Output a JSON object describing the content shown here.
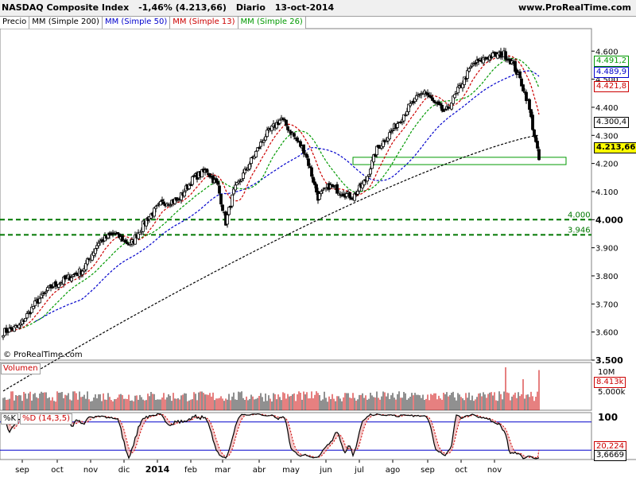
{
  "header": {
    "instrument": "NASDAQ Composite Index",
    "change": "-1,46% (4.213,66)",
    "period": "Diario",
    "date": "13-oct-2014",
    "site": "www.ProRealTime.com"
  },
  "legend": [
    {
      "label": "Precio",
      "color": "#000000"
    },
    {
      "label": "MM (Simple 200)",
      "color": "#000000"
    },
    {
      "label": "MM (Simple 50)",
      "color": "#0000cc"
    },
    {
      "label": "MM (Simple 13)",
      "color": "#cc0000"
    },
    {
      "label": "MM (Simple 26)",
      "color": "#009900"
    }
  ],
  "value_tags": [
    {
      "text": "4.491,2",
      "color": "#009900"
    },
    {
      "text": "4.489,9",
      "color": "#0000cc"
    },
    {
      "text": "4.421,8",
      "color": "#cc0000"
    },
    {
      "text": "4.300,4",
      "color": "#000000"
    },
    {
      "text": "4.213,66",
      "color": "#000000"
    }
  ],
  "copyright": "© ProRealTime.com",
  "volume_label": "Volumen",
  "volume_tags": {
    "max": "10M",
    "last": "8.413k",
    "mid": "5.000k"
  },
  "stoch_label_k": "%K",
  "stoch_label_d": "%D (14,3,5)",
  "stoch_tags": {
    "top": "100",
    "d": "20,224",
    "k": "3,6669"
  },
  "chart_data": {
    "type": "candlestick",
    "title": "NASDAQ Composite Index",
    "ylim": [
      3500,
      4680
    ],
    "y_ticks": [
      3500,
      3600,
      3700,
      3800,
      3900,
      4000,
      4100,
      4200,
      4300,
      4400,
      4500,
      4600
    ],
    "y_tick_labels": [
      "3.500",
      "3.600",
      "3.700",
      "3.800",
      "3.900",
      "4.000",
      "4.100",
      "4.200",
      "4.300",
      "4.400",
      "4.500",
      "4.600"
    ],
    "x_labels": [
      "sep",
      "oct",
      "nov",
      "dic",
      "2014",
      "feb",
      "mar",
      "abr",
      "may",
      "jun",
      "jul",
      "ago",
      "sep",
      "oct",
      "nov"
    ],
    "close_anchors": [
      [
        0,
        3600
      ],
      [
        10,
        3620
      ],
      [
        20,
        3700
      ],
      [
        30,
        3760
      ],
      [
        40,
        3790
      ],
      [
        50,
        3820
      ],
      [
        60,
        3920
      ],
      [
        70,
        3950
      ],
      [
        80,
        3910
      ],
      [
        90,
        4000
      ],
      [
        100,
        4060
      ],
      [
        110,
        4070
      ],
      [
        120,
        4150
      ],
      [
        128,
        4175
      ],
      [
        135,
        4120
      ],
      [
        140,
        3990
      ],
      [
        145,
        4100
      ],
      [
        155,
        4200
      ],
      [
        165,
        4300
      ],
      [
        175,
        4360
      ],
      [
        180,
        4320
      ],
      [
        190,
        4240
      ],
      [
        198,
        4080
      ],
      [
        205,
        4120
      ],
      [
        212,
        4100
      ],
      [
        220,
        4080
      ],
      [
        228,
        4140
      ],
      [
        235,
        4250
      ],
      [
        245,
        4320
      ],
      [
        255,
        4400
      ],
      [
        265,
        4460
      ],
      [
        270,
        4420
      ],
      [
        278,
        4380
      ],
      [
        285,
        4450
      ],
      [
        295,
        4550
      ],
      [
        305,
        4580
      ],
      [
        315,
        4590
      ],
      [
        320,
        4560
      ],
      [
        325,
        4500
      ],
      [
        330,
        4420
      ],
      [
        333,
        4330
      ],
      [
        337,
        4213.66
      ]
    ],
    "moving_averages": [
      {
        "name": "MM (Simple 200)",
        "period": 200,
        "last": 4300.4,
        "color": "#000000"
      },
      {
        "name": "MM (Simple 50)",
        "period": 50,
        "last": 4489.9,
        "color": "#0000cc"
      },
      {
        "name": "MM (Simple 13)",
        "period": 13,
        "last": 4421.8,
        "color": "#cc0000"
      },
      {
        "name": "MM (Simple 26)",
        "period": 26,
        "last": 4491.2,
        "color": "#009900"
      }
    ],
    "support_lines": [
      {
        "value": 4000,
        "label": "4.000"
      },
      {
        "value": 3946,
        "label": "3.946"
      }
    ],
    "support_zone": [
      4196,
      4222
    ],
    "last_close": 4213.66,
    "volume": {
      "ylim": [
        0,
        10000000
      ],
      "last": 8413000
    },
    "stochastic": {
      "k_period": 14,
      "smooth": 3,
      "d_period": 5,
      "last_k": 3.6669,
      "last_d": 20.224,
      "ylim": [
        0,
        100
      ]
    }
  }
}
